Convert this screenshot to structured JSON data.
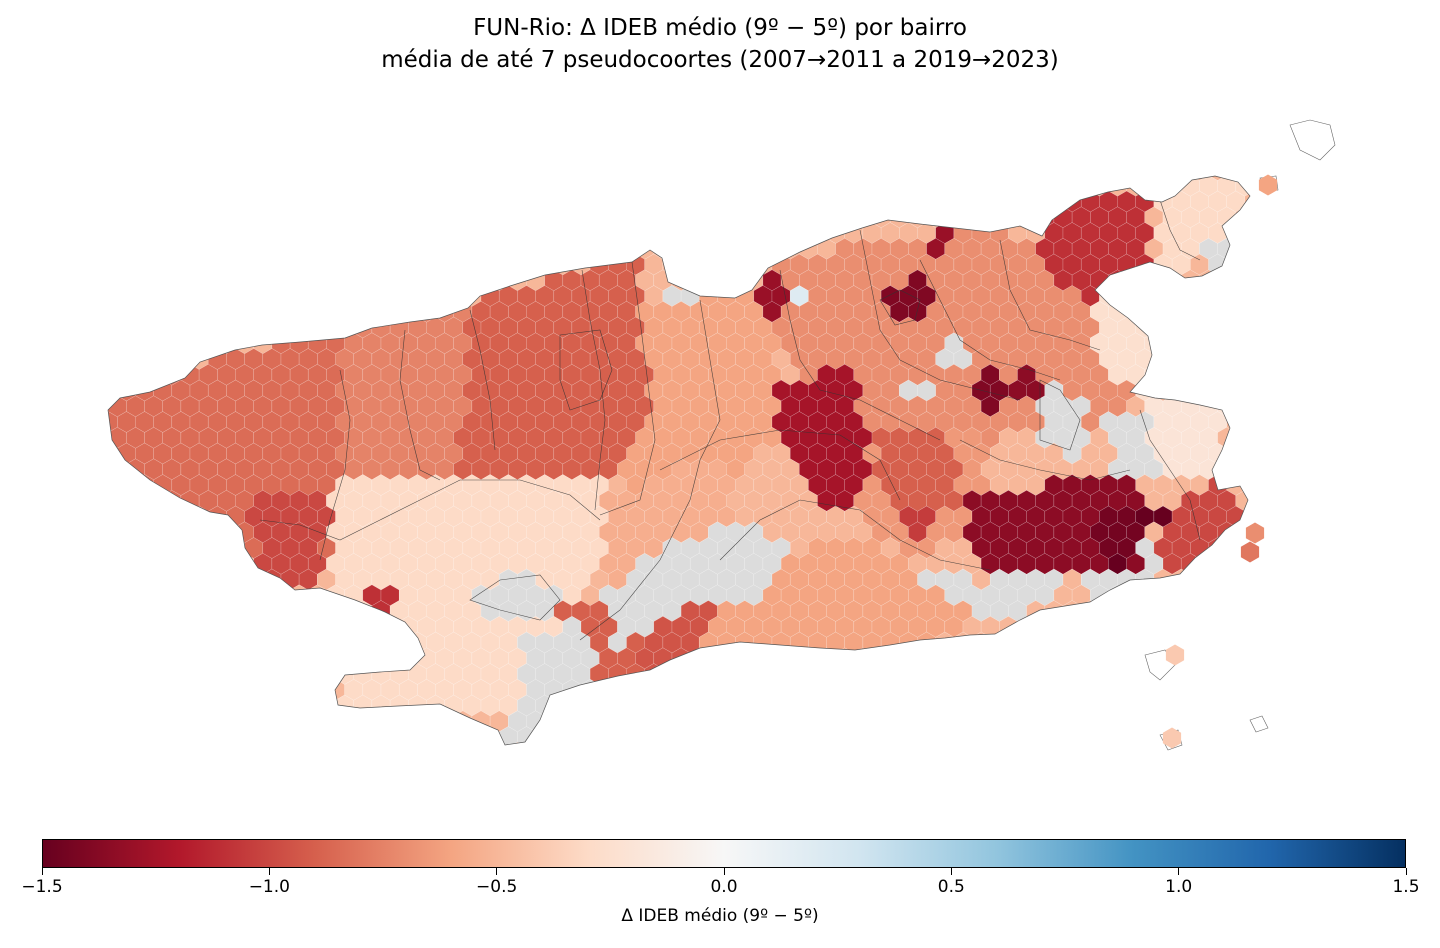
{
  "title_line1": "FUN-Rio: Δ IDEB médio (9º − 5º) por bairro",
  "title_line2": "média de até 7 pseudocoortes (2007→2011 a 2019→2023)",
  "colorbar": {
    "label": "Δ IDEB médio (9º − 5º)",
    "min": -1.5,
    "max": 1.5,
    "colormap": "RdBu",
    "ticks": [
      {
        "value": -1.5,
        "label": "−1.5"
      },
      {
        "value": -1.0,
        "label": "−1.0"
      },
      {
        "value": -0.5,
        "label": "−0.5"
      },
      {
        "value": 0.0,
        "label": "0.0"
      },
      {
        "value": 0.5,
        "label": "0.5"
      },
      {
        "value": 1.0,
        "label": "1.0"
      },
      {
        "value": 1.5,
        "label": "1.5"
      }
    ],
    "stops": [
      "#67001f",
      "#b2182b",
      "#d6604d",
      "#f4a582",
      "#fddbc7",
      "#f7f7f7",
      "#d1e5f0",
      "#92c5de",
      "#4393c3",
      "#2166ac",
      "#053061"
    ]
  },
  "no_data_color": "#dcdcdc",
  "outline_color": "#333333"
}
